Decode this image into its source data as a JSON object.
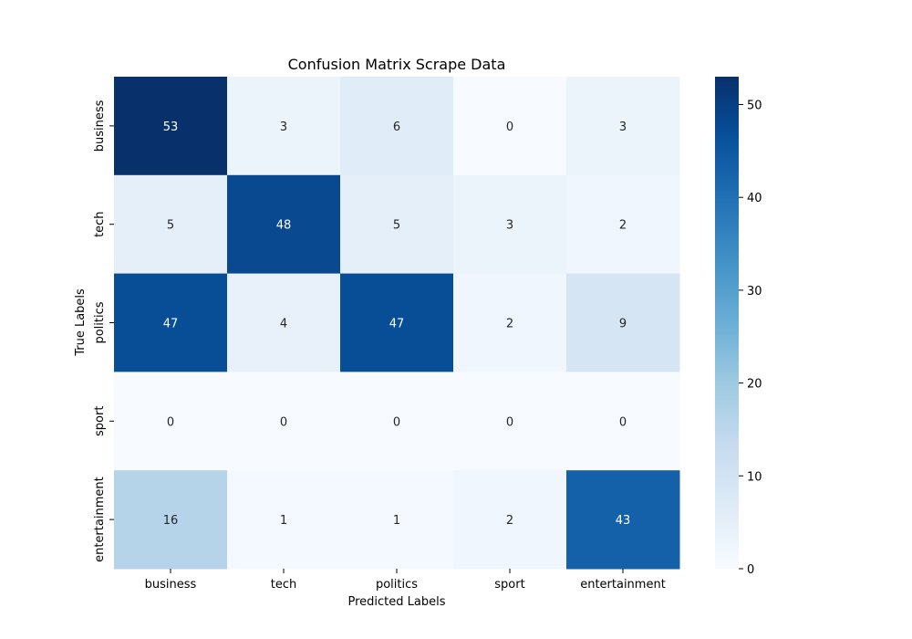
{
  "chart_data": {
    "type": "heatmap",
    "title": "Confusion Matrix Scrape Data",
    "xlabel": "Predicted Labels",
    "ylabel": "True Labels",
    "x_categories": [
      "business",
      "tech",
      "politics",
      "sport",
      "entertainment"
    ],
    "y_categories": [
      "business",
      "tech",
      "politics",
      "sport",
      "entertainment"
    ],
    "matrix": [
      [
        53,
        3,
        6,
        0,
        3
      ],
      [
        5,
        48,
        5,
        3,
        2
      ],
      [
        47,
        4,
        47,
        2,
        9
      ],
      [
        0,
        0,
        0,
        0,
        0
      ],
      [
        16,
        1,
        1,
        2,
        43
      ]
    ],
    "colormap": "Blues",
    "vmin": 0,
    "vmax": 53,
    "colorbar_ticks": [
      0,
      10,
      20,
      30,
      40,
      50
    ],
    "annotation_dark_color": "#262626",
    "annotation_light_color": "#ffffff"
  }
}
